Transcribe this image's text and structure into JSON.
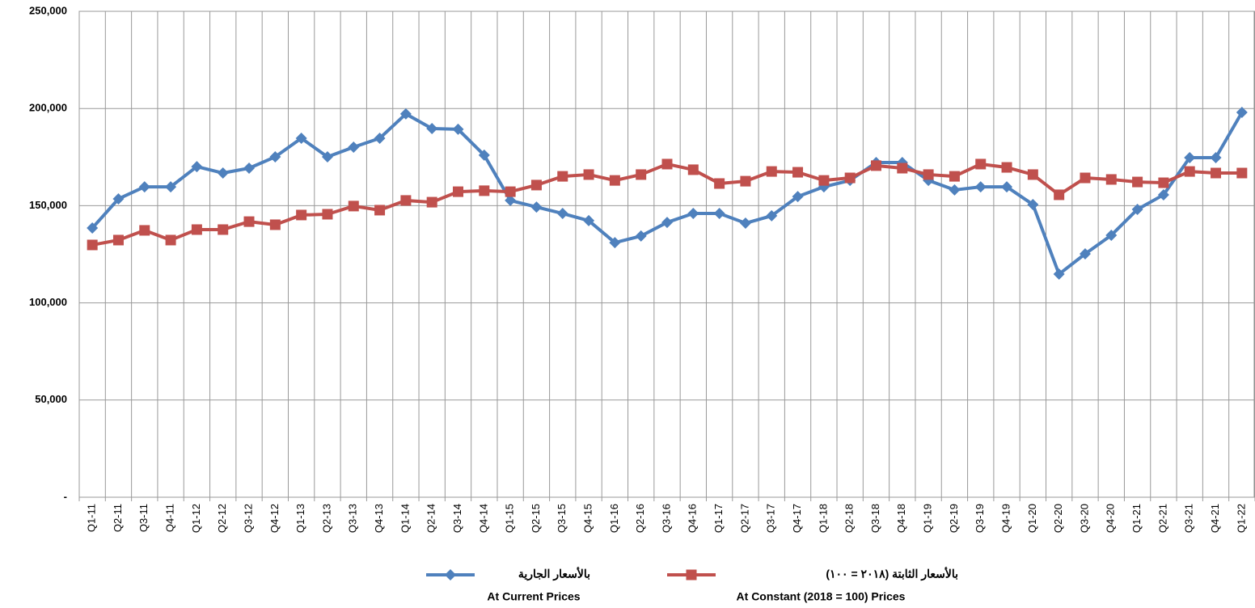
{
  "chart_data": {
    "type": "line",
    "categories": [
      "Q1-11",
      "Q2-11",
      "Q3-11",
      "Q4-11",
      "Q1-12",
      "Q2-12",
      "Q3-12",
      "Q4-12",
      "Q1-13",
      "Q2-13",
      "Q3-13",
      "Q4-13",
      "Q1-14",
      "Q2-14",
      "Q3-14",
      "Q4-14",
      "Q1-15",
      "Q2-15",
      "Q3-15",
      "Q4-15",
      "Q1-16",
      "Q2-16",
      "Q3-16",
      "Q4-16",
      "Q1-17",
      "Q2-17",
      "Q3-17",
      "Q4-17",
      "Q1-18",
      "Q2-18",
      "Q3-18",
      "Q4-18",
      "Q1-19",
      "Q2-19",
      "Q3-19",
      "Q4-19",
      "Q1-20",
      "Q2-20",
      "Q3-20",
      "Q4-20",
      "Q1-21",
      "Q2-21",
      "Q3-21",
      "Q4-21",
      "Q1-22"
    ],
    "series": [
      {
        "name": "بالأسعار الجارية",
        "name_en": "At Current Prices",
        "color": "#4f81bd",
        "marker": "diamond",
        "values": [
          138500,
          153500,
          159700,
          159700,
          170100,
          166800,
          169300,
          175100,
          184700,
          175100,
          180100,
          184700,
          197200,
          189700,
          189300,
          176000,
          152700,
          149300,
          146000,
          142300,
          131000,
          134400,
          141400,
          146000,
          146000,
          141000,
          144800,
          154700,
          159700,
          163000,
          172200,
          172200,
          163000,
          158100,
          159700,
          159700,
          150600,
          114800,
          125200,
          134800,
          148100,
          155600,
          174700,
          174700,
          198000
        ]
      },
      {
        "name": "بالأسعار الثابتة (٢٠١٨ = ١٠٠)",
        "name_en": "At Constant (2018 = 100) Prices",
        "color": "#c0504d",
        "marker": "square",
        "values": [
          129800,
          132300,
          137300,
          132300,
          137700,
          137700,
          141800,
          140200,
          145200,
          145600,
          149800,
          147700,
          152700,
          151800,
          157200,
          157700,
          157200,
          160600,
          165100,
          166000,
          163000,
          166000,
          171400,
          168500,
          161400,
          162600,
          167600,
          167200,
          163000,
          164300,
          170600,
          169300,
          166000,
          165100,
          171400,
          169700,
          166000,
          155600,
          164300,
          163500,
          162200,
          161800,
          167600,
          166800,
          166800
        ]
      }
    ],
    "ylim": [
      0,
      250000
    ],
    "yticks": [
      {
        "value": 0,
        "label": "-"
      },
      {
        "value": 50000,
        "label": "50,000"
      },
      {
        "value": 100000,
        "label": "100,000"
      },
      {
        "value": 150000,
        "label": "150,000"
      },
      {
        "value": 200000,
        "label": "200,000"
      },
      {
        "value": 250000,
        "label": "250,000"
      }
    ],
    "grid": true,
    "legend": "bottom"
  }
}
